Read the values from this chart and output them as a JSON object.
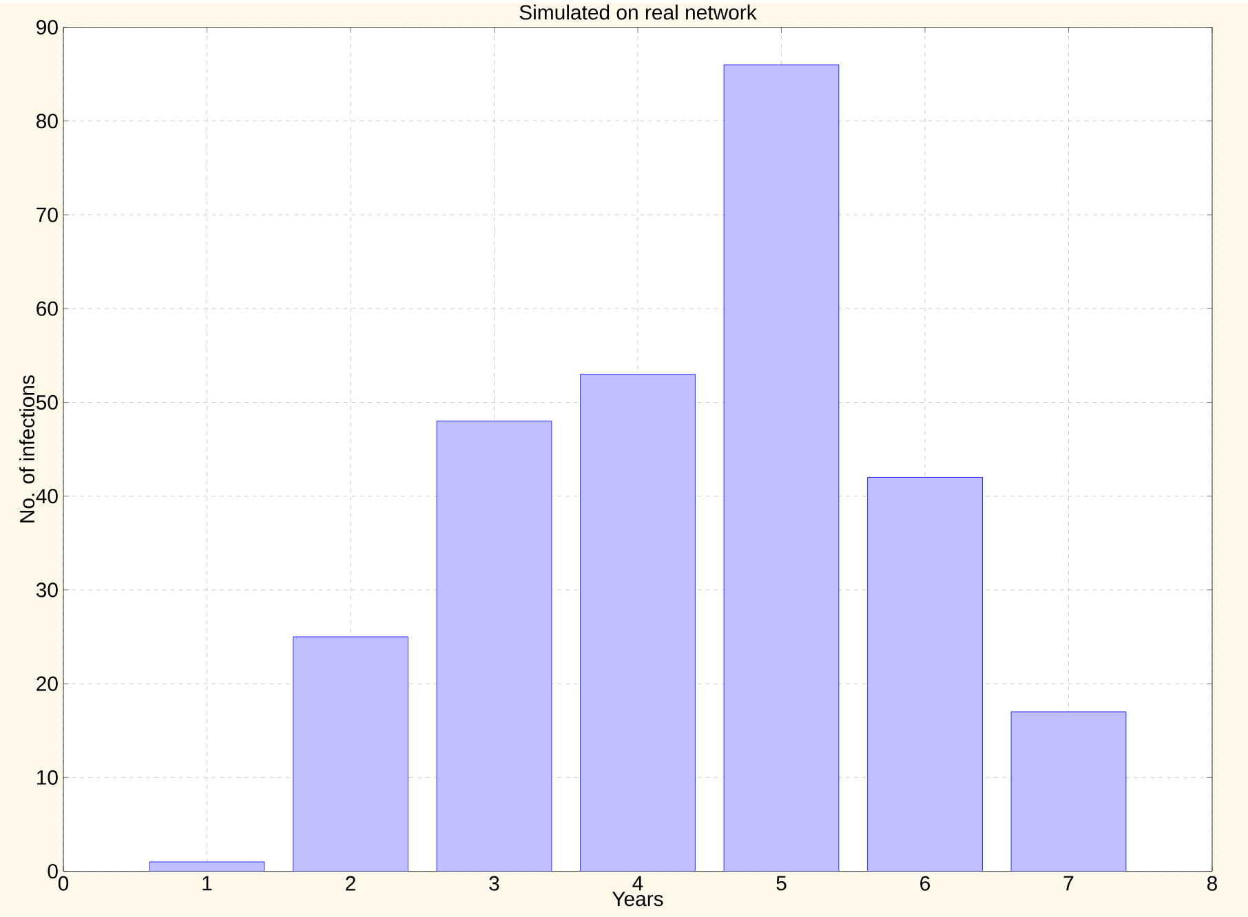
{
  "chart_data": {
    "type": "bar",
    "title": "Simulated on real network",
    "xlabel": "Years",
    "ylabel": "No. of infections",
    "x": [
      1,
      2,
      3,
      4,
      5,
      6,
      7
    ],
    "values": [
      1,
      25,
      48,
      53,
      86,
      42,
      17
    ],
    "color": "#c0c0ff",
    "xlim": [
      0,
      8
    ],
    "xticks": [
      0,
      1,
      2,
      3,
      4,
      5,
      6,
      7,
      8
    ],
    "ylim": [
      0,
      90
    ],
    "yticks": [
      0,
      10,
      20,
      30,
      40,
      50,
      60,
      70,
      80,
      90
    ],
    "grid": true
  }
}
